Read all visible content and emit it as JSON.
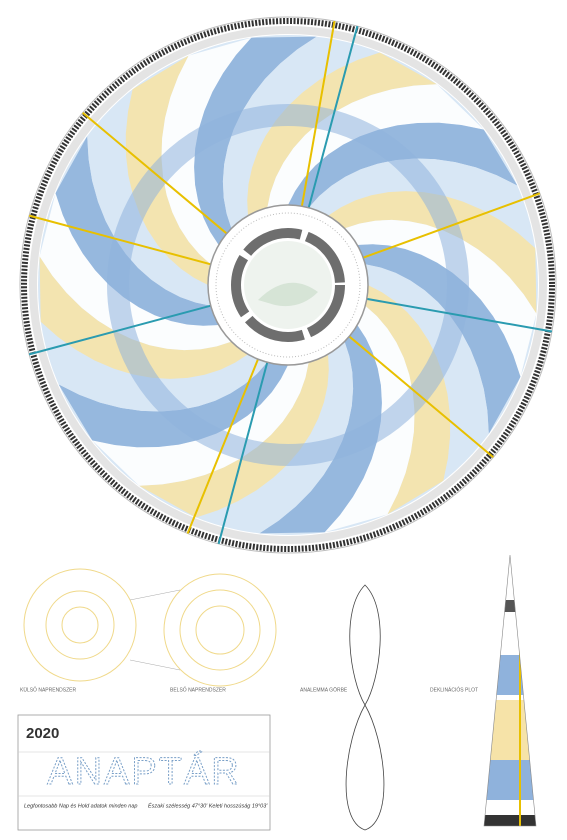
{
  "poster": {
    "year": "2020",
    "title": "ANAPTÁR",
    "subtitle_left": "Legfontosabb Nap és Hold adatok minden nap",
    "subtitle_right": "Északi szélesség 47°30' Keleti hosszúság 19°03'",
    "sections": [
      "KÜLSŐ NAPRENDSZER",
      "BELSŐ NAPRENDSZER",
      "ANALEMMA GÖRBE",
      "DEKLINÁCIÓS PLOT"
    ]
  }
}
